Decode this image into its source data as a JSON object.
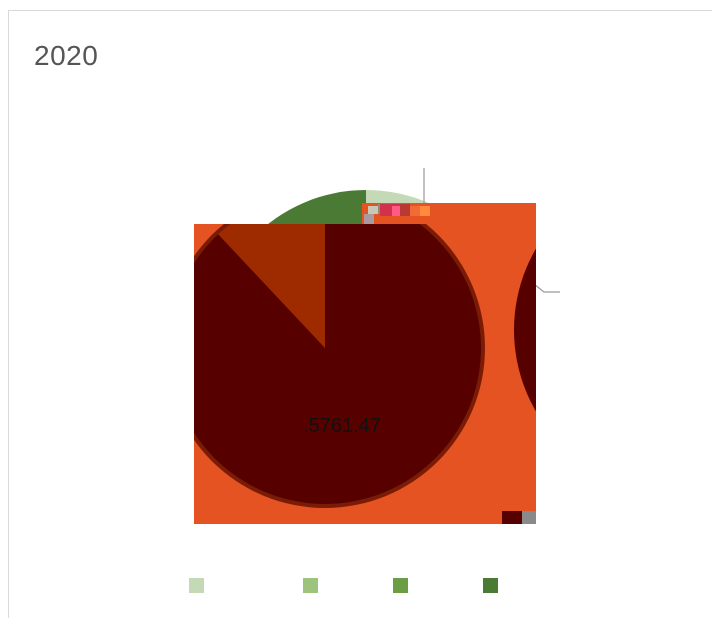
{
  "panel": {
    "title": "2020"
  },
  "chart_data": {
    "type": "pie",
    "title": "2020",
    "zoom_value_label": ".5761.47",
    "series": [
      {
        "name": "",
        "value": 13.4,
        "color": "#c4d9b5"
      },
      {
        "name": "",
        "value": 5.2,
        "color": "#9cc47e"
      },
      {
        "name": "",
        "value": 30.0,
        "color": "#6b9d45"
      },
      {
        "name": "",
        "value": 51.4,
        "color": "#4a7a33"
      }
    ],
    "zoom_slices": [
      {
        "value": 88.0,
        "color": "#570000"
      },
      {
        "value": 12.0,
        "color": "#9e2a00"
      }
    ],
    "legend": {
      "placement": "bottom"
    },
    "colors": {
      "zoom_background": "#e65323",
      "zoom_pie_dark": "#570000",
      "zoom_pie_light": "#9e2a00",
      "leader_line": "#9a9a9a"
    }
  }
}
